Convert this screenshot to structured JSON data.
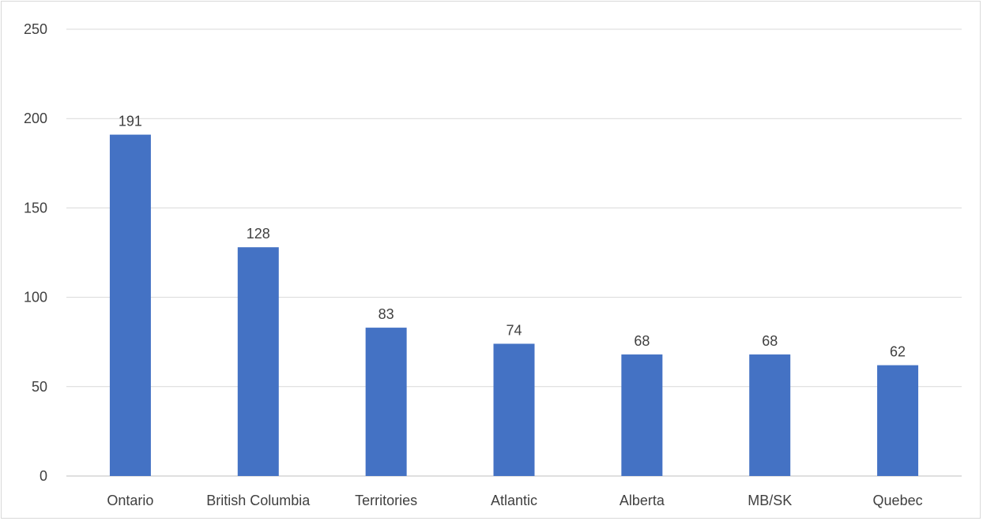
{
  "chart_data": {
    "type": "bar",
    "categories": [
      "Ontario",
      "British Columbia",
      "Territories",
      "Atlantic",
      "Alberta",
      "MB/SK",
      "Quebec"
    ],
    "values": [
      191,
      128,
      83,
      74,
      68,
      68,
      62
    ],
    "ylim": [
      0,
      250
    ],
    "yticks": [
      0,
      50,
      100,
      150,
      200,
      250
    ],
    "grid": true,
    "data_labels": true,
    "title": "",
    "xlabel": "",
    "ylabel": "",
    "bar_color": "#4472c4"
  }
}
